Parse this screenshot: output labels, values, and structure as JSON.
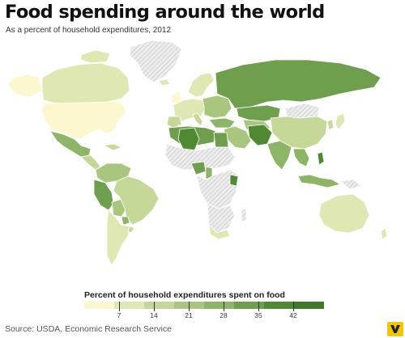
{
  "title": "Food spending around the world",
  "subtitle": "As a percent of household expenditures, 2012",
  "legend": {
    "title": "Percent of household expenditures spent on food",
    "ticks": [
      "7",
      "14",
      "21",
      "28",
      "35",
      "42"
    ],
    "colors": [
      "#fdf7cf",
      "#dfe8b2",
      "#c6d898",
      "#a8c67d",
      "#8cb565",
      "#6e9f4c",
      "#4f8a33",
      "#3f7a26"
    ],
    "no_data_fill": "#e4e4e4"
  },
  "source": "Source: USDA, Economic Research Service",
  "logo": {
    "icon": "vox-logo"
  }
}
